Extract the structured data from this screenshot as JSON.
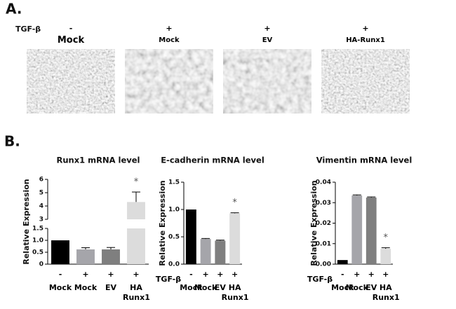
{
  "panel_a": {
    "label": "A.",
    "tgf_label": "TGF-β",
    "conditions": [
      {
        "tgf": "-",
        "name": "Mock"
      },
      {
        "tgf": "+",
        "name": "Mock"
      },
      {
        "tgf": "+",
        "name": "EV"
      },
      {
        "tgf": "+",
        "name": "HA-Runx1"
      }
    ]
  },
  "panel_b_label": "B.",
  "chart_data": [
    {
      "type": "bar",
      "title": "Runx1 mRNA level",
      "y_label": "Relative Expression",
      "categories": [
        "Mock",
        "Mock",
        "EV",
        "HA Runx1"
      ],
      "tgf": [
        "-",
        "+",
        "+",
        "+"
      ],
      "values": [
        1.0,
        0.62,
        0.62,
        4.3
      ],
      "errors": [
        0,
        0.07,
        0.08,
        0.75
      ],
      "significance": [
        null,
        null,
        null,
        "*"
      ],
      "colors": [
        "#000000",
        "#a5a5aa",
        "#7f7f7f",
        "#dcdcdc"
      ],
      "ylim": [
        0,
        6
      ],
      "axis_break": [
        1.5,
        3
      ],
      "yticks": [
        0,
        0.5,
        {
          "value": 1,
          "label": "1.0"
        },
        1.5,
        3,
        4,
        5,
        6
      ]
    },
    {
      "type": "bar",
      "title": "E-cadherin mRNA level",
      "y_label": "Relative Expression",
      "tgf_label": "TGF-β",
      "categories": [
        "Mock",
        "Mock",
        "EV",
        "HA Runx1"
      ],
      "tgf": [
        "-",
        "+",
        "+",
        "+"
      ],
      "values": [
        1.0,
        0.46,
        0.43,
        0.93
      ],
      "errors": [
        0,
        0.01,
        0.01,
        0.01
      ],
      "significance": [
        null,
        null,
        null,
        "*"
      ],
      "colors": [
        "#000000",
        "#a5a5aa",
        "#7f7f7f",
        "#dcdcdc"
      ],
      "ylim": [
        0,
        1.5
      ],
      "yticks": [
        {
          "value": 0,
          "label": "0.0"
        },
        0.5,
        {
          "value": 1,
          "label": "1.0"
        },
        1.5
      ]
    },
    {
      "type": "bar",
      "title": "Vimentin mRNA level",
      "y_label": "Relative Expression",
      "tgf_label": "TGF-β",
      "categories": [
        "Mock",
        "Mock",
        "EV",
        "HA Runx1"
      ],
      "tgf": [
        "-",
        "+",
        "+",
        "+"
      ],
      "values": [
        0.002,
        0.0335,
        0.0325,
        0.0075
      ],
      "errors": [
        0,
        0.0003,
        0.0003,
        0.0005
      ],
      "significance": [
        null,
        null,
        null,
        "*"
      ],
      "colors": [
        "#000000",
        "#a5a5aa",
        "#7f7f7f",
        "#dcdcdc"
      ],
      "ylim": [
        0,
        0.04
      ],
      "yticks": [
        {
          "value": 0,
          "label": "0.00"
        },
        0.01,
        0.02,
        0.03,
        0.04
      ]
    }
  ]
}
